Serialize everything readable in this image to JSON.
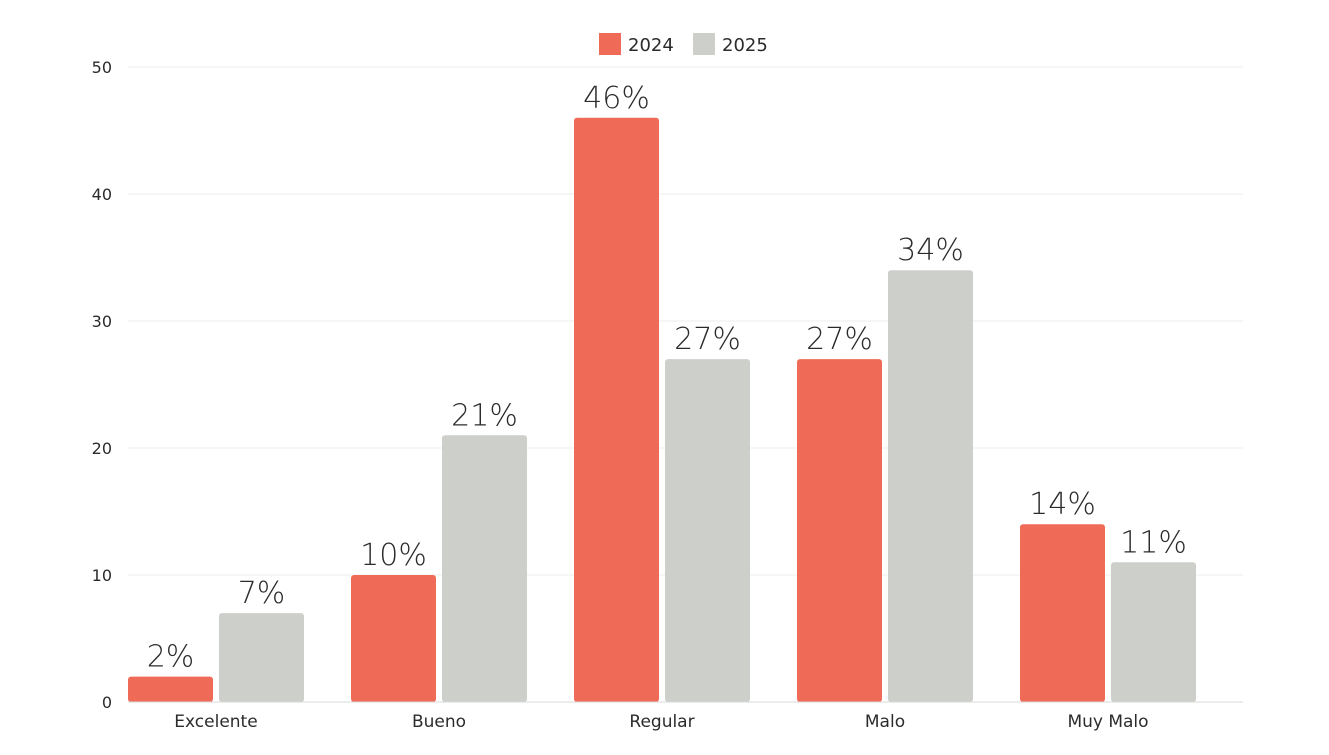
{
  "chart_data": {
    "type": "bar",
    "categories": [
      "Excelente",
      "Bueno",
      "Regular",
      "Malo",
      "Muy Malo"
    ],
    "series": [
      {
        "name": "2024",
        "color": "#f06a58",
        "values": [
          2,
          10,
          46,
          27,
          14
        ],
        "labels": [
          "2%",
          "10%",
          "46%",
          "27%",
          "14%"
        ]
      },
      {
        "name": "2025",
        "color": "#cdcfcb",
        "values": [
          7,
          21,
          27,
          34,
          11
        ],
        "labels": [
          "7%",
          "21%",
          "27%",
          "34%",
          "11%"
        ]
      }
    ],
    "ylim": [
      0,
      50
    ],
    "yticks": [
      "0",
      "10",
      "20",
      "30",
      "40",
      "50"
    ],
    "legend_position": "top-center",
    "grid": true
  }
}
